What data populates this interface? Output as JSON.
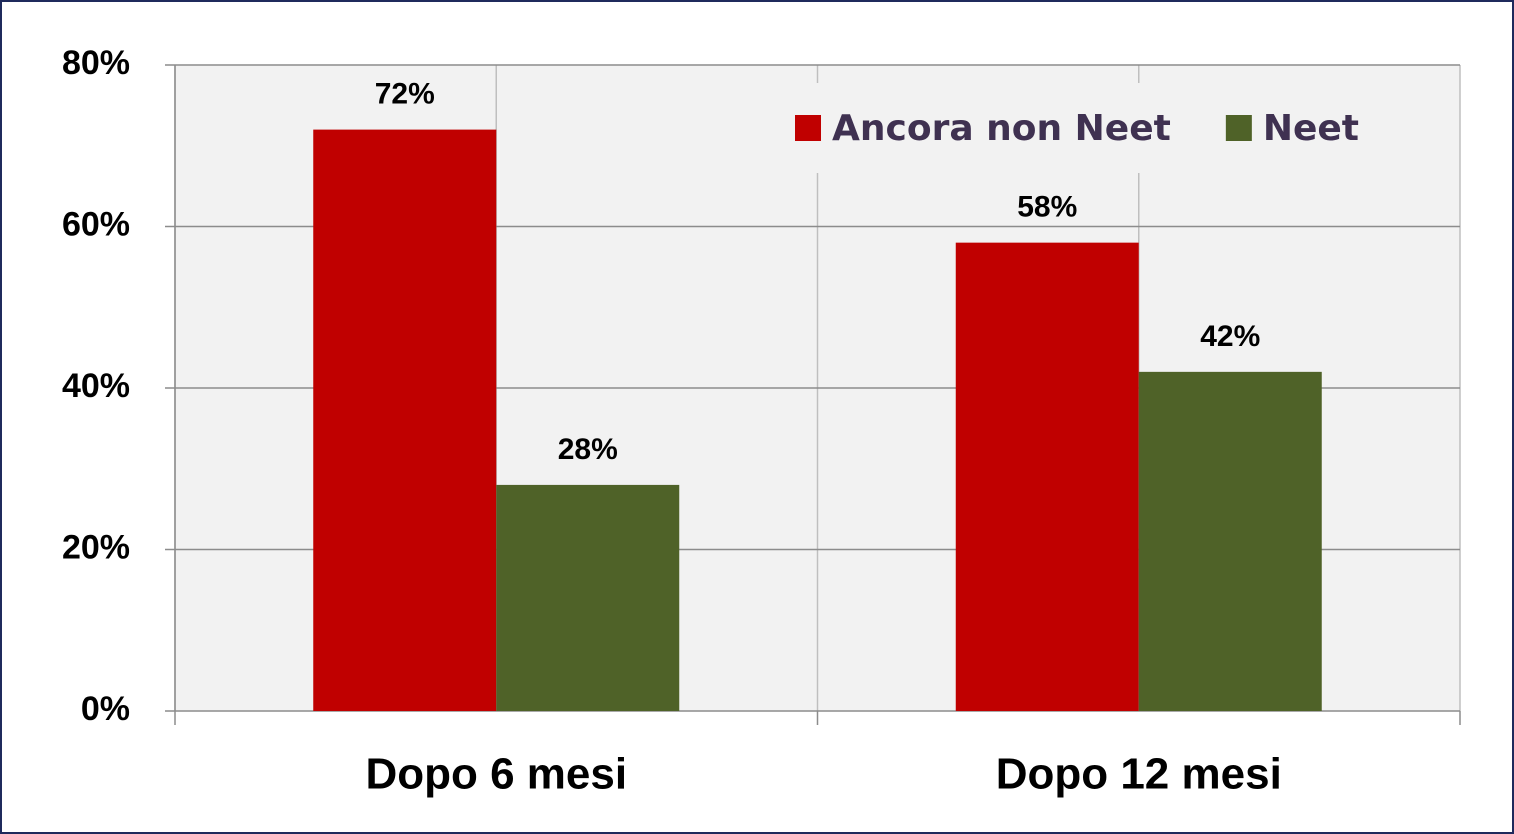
{
  "chart_data": {
    "type": "bar",
    "categories": [
      "Dopo 6 mesi",
      "Dopo 12 mesi"
    ],
    "series": [
      {
        "name": "Ancora non Neet",
        "color": "#c00000",
        "values": [
          72,
          58
        ],
        "value_labels": [
          "72%",
          "58%"
        ]
      },
      {
        "name": "Neet",
        "color": "#4f6228",
        "values": [
          28,
          42
        ],
        "value_labels": [
          "28%",
          "42%"
        ]
      }
    ],
    "ylim": [
      0,
      80
    ],
    "yticks": [
      {
        "value": 0,
        "label": "0%"
      },
      {
        "value": 20,
        "label": "20%"
      },
      {
        "value": 40,
        "label": "40%"
      },
      {
        "value": 60,
        "label": "60%"
      },
      {
        "value": 80,
        "label": "80%"
      }
    ],
    "grid": true,
    "legend": "top-right"
  }
}
